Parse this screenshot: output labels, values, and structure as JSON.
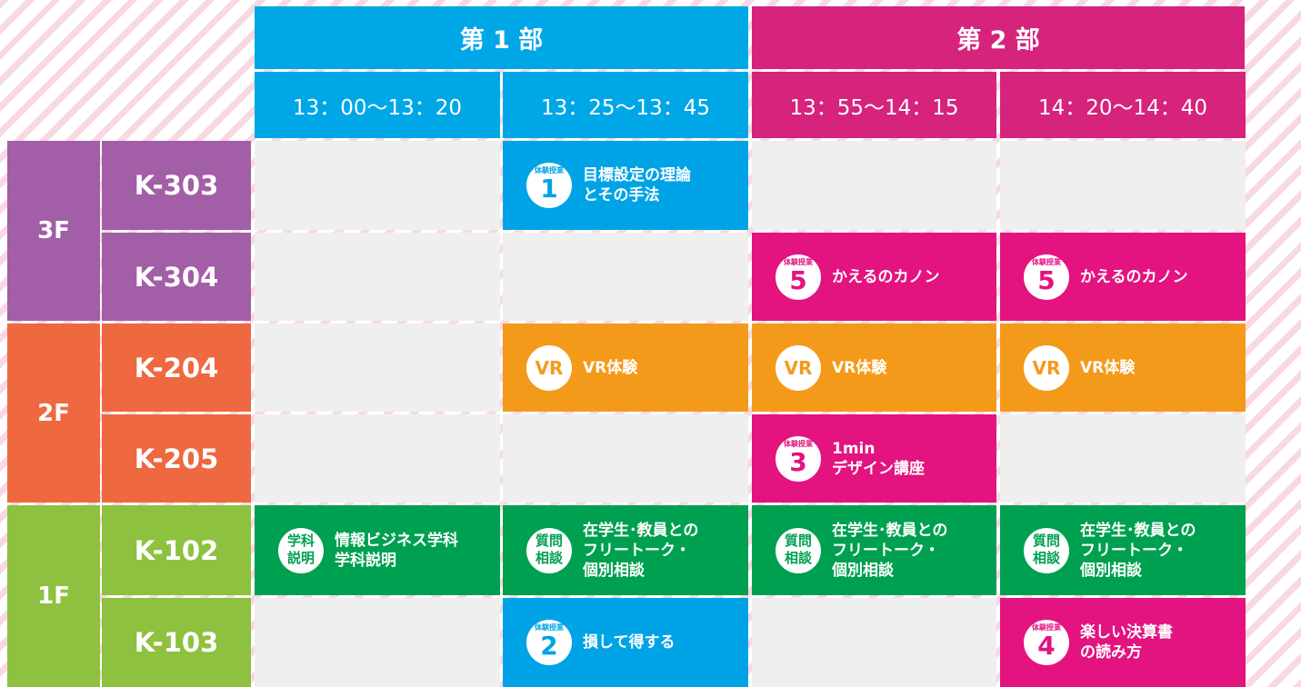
{
  "header": {
    "parts": [
      "第 1 部",
      "第 2 部"
    ],
    "times": [
      "13：00〜13：20",
      "13：25〜13：45",
      "13：55〜14：15",
      "14：20〜14：40"
    ]
  },
  "floors": [
    {
      "label": "3F",
      "color": "#a25ea6",
      "rooms": [
        {
          "name": "K-303",
          "cells": [
            null,
            {
              "color": "#00a3e6",
              "badge": {
                "label": "体験授業",
                "num": "1"
              },
              "lines": [
                "目標設定の理論",
                "とその手法"
              ]
            },
            null,
            null
          ]
        },
        {
          "name": "K-304",
          "cells": [
            null,
            null,
            {
              "color": "#e3137f",
              "badge": {
                "label": "体験授業",
                "num": "5"
              },
              "lines": [
                "かえるのカノン"
              ]
            },
            {
              "color": "#e3137f",
              "badge": {
                "label": "体験授業",
                "num": "5"
              },
              "lines": [
                "かえるのカノン"
              ]
            }
          ]
        }
      ]
    },
    {
      "label": "2F",
      "color": "#ee6840",
      "rooms": [
        {
          "name": "K-204",
          "cells": [
            null,
            {
              "color": "#f49a1a",
              "badge": {
                "num": "VR"
              },
              "lines": [
                "VR体験"
              ]
            },
            {
              "color": "#f49a1a",
              "badge": {
                "num": "VR"
              },
              "lines": [
                "VR体験"
              ]
            },
            {
              "color": "#f49a1a",
              "badge": {
                "num": "VR"
              },
              "lines": [
                "VR体験"
              ]
            }
          ]
        },
        {
          "name": "K-205",
          "cells": [
            null,
            null,
            {
              "color": "#e3137f",
              "badge": {
                "label": "体験授業",
                "num": "3"
              },
              "lines": [
                "1min",
                "デザイン講座"
              ]
            },
            null
          ]
        }
      ]
    },
    {
      "label": "1F",
      "color": "#8dc13f",
      "rooms": [
        {
          "name": "K-102",
          "cells": [
            {
              "color": "#00a051",
              "badge": {
                "pair": [
                  "学科",
                  "説明"
                ]
              },
              "lines": [
                "情報ビジネス学科",
                "学科説明"
              ]
            },
            {
              "color": "#00a051",
              "badge": {
                "pair": [
                  "質問",
                  "相談"
                ]
              },
              "lines": [
                "在学生･教員との",
                "フリートーク・",
                "個別相談"
              ]
            },
            {
              "color": "#00a051",
              "badge": {
                "pair": [
                  "質問",
                  "相談"
                ]
              },
              "lines": [
                "在学生･教員との",
                "フリートーク・",
                "個別相談"
              ]
            },
            {
              "color": "#00a051",
              "badge": {
                "pair": [
                  "質問",
                  "相談"
                ]
              },
              "lines": [
                "在学生･教員との",
                "フリートーク・",
                "個別相談"
              ]
            }
          ]
        },
        {
          "name": "K-103",
          "cells": [
            null,
            {
              "color": "#00a3e6",
              "badge": {
                "label": "体験授業",
                "num": "2"
              },
              "lines": [
                "損して得する"
              ]
            },
            null,
            {
              "color": "#e3137f",
              "badge": {
                "label": "体験授業",
                "num": "4"
              },
              "lines": [
                "楽しい決算書",
                "の読み方"
              ]
            }
          ]
        }
      ]
    }
  ]
}
